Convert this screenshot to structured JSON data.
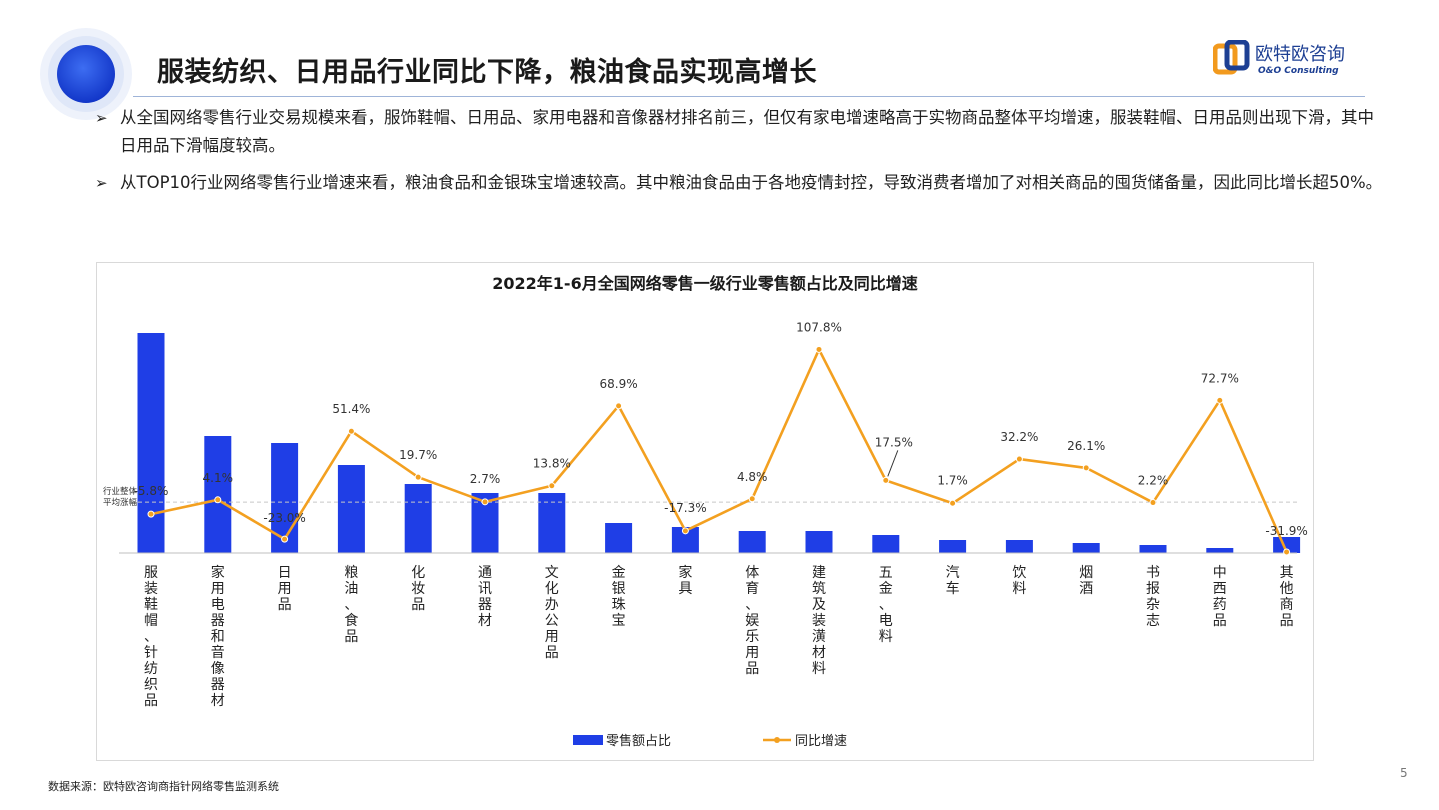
{
  "header": {
    "title": "服装纺织、日用品行业同比下降，粮油食品实现高增长",
    "brand_name": "欧特欧咨询",
    "brand_sub": "O&O Consulting"
  },
  "bullets": [
    "从全国网络零售行业交易规模来看，服饰鞋帽、日用品、家用电器和音像器材排名前三，但仅有家电增速略高于实物商品整体平均增速，服装鞋帽、日用品则出现下滑，其中日用品下滑幅度较高。",
    "从TOP10行业网络零售行业增速来看，粮油食品和金银珠宝增速较高。其中粮油食品由于各地疫情封控，导致消费者增加了对相关商品的囤货储备量，因此同比增长超50%。"
  ],
  "chart_data": {
    "type": "bar+line",
    "title": "2022年1-6月全国网络零售一级行业零售额占比及同比增速",
    "categories": [
      "服装鞋帽、针纺织品",
      "家用电器和音像器材",
      "日用品",
      "粮油、食品",
      "化妆品",
      "通讯器材",
      "文化办公用品",
      "金银珠宝",
      "家具",
      "体育、娱乐用品",
      "建筑及装潢材料",
      "五金、电料",
      "汽车",
      "饮料",
      "烟酒",
      "书报杂志",
      "中西药品",
      "其他商品"
    ],
    "series": [
      {
        "name": "零售额占比",
        "kind": "bar",
        "color": "#1f3ee6",
        "values": [
          22.0,
          11.7,
          11.0,
          8.8,
          6.9,
          6.0,
          6.0,
          3.0,
          2.6,
          2.2,
          2.2,
          1.8,
          1.3,
          1.3,
          1.0,
          0.8,
          0.5,
          1.6
        ]
      },
      {
        "name": "同比增速",
        "kind": "line",
        "color": "#f3a020",
        "values": [
          -5.8,
          4.1,
          -23.0,
          51.4,
          19.7,
          2.7,
          13.8,
          68.9,
          -17.3,
          4.8,
          107.8,
          17.5,
          1.7,
          32.2,
          26.1,
          2.2,
          72.7,
          -31.9
        ],
        "labels": [
          "-5.8%",
          "4.1%",
          "-23.0%",
          "51.4%",
          "19.7%",
          "2.7%",
          "13.8%",
          "68.9%",
          "-17.3%",
          "4.8%",
          "107.8%",
          "17.5%",
          "1.7%",
          "32.2%",
          "26.1%",
          "2.2%",
          "72.7%",
          "-31.9%"
        ]
      }
    ],
    "reference_line": {
      "label_line1": "行业整体",
      "label_line2": "平均涨幅",
      "value": 2.5
    },
    "bar_ylim": [
      0,
      22
    ],
    "line_ylim": [
      -45,
      115
    ],
    "legend_position": "bottom",
    "grid": false
  },
  "footer": {
    "source": "数据来源：欧特欧咨询商指针网络零售监测系统",
    "page": "5"
  }
}
